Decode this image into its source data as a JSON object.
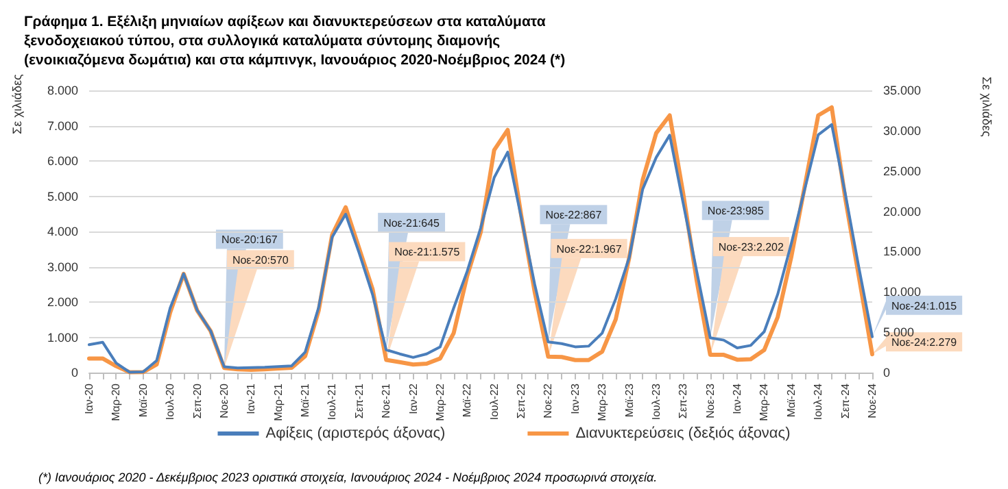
{
  "chart_data": {
    "type": "line",
    "title": "Γράφημα 1. Εξέλιξη μηνιαίων αφίξεων και διανυκτερεύσεων στα καταλύματα ξενοδοχειακού τύπου, στα συλλογικά καταλύματα σύντομης διαμονής (ενοικιαζόμενα δωμάτια) και στα κάμπινγκ, Ιανουάριος 2020-Νοέμβριος 2024 (*)",
    "ylabel": "Σε χιλιάδες",
    "y2label": "Σε χιλιάδες",
    "categories": [
      "Ιαν-20",
      null,
      "Μαρ-20",
      null,
      "Μαϊ-20",
      null,
      "Ιουλ-20",
      null,
      "Σεπ-20",
      null,
      "Νοε-20",
      null,
      "Ιαν-21",
      null,
      "Μαρ-21",
      null,
      "Μαϊ-21",
      null,
      "Ιουλ-21",
      null,
      "Σεπ-21",
      null,
      "Νοε-21",
      null,
      "Ιαν-22",
      null,
      "Μαρ-22",
      null,
      "Μαϊ-22",
      null,
      "Ιουλ-22",
      null,
      "Σεπ-22",
      null,
      "Νοε-22",
      null,
      "Ιαν-23",
      null,
      "Μαρ-23",
      null,
      "Μαϊ-23",
      null,
      "Ιουλ-23",
      null,
      "Σεπ-23",
      null,
      "Νοε-23",
      null,
      "Ιαν-24",
      null,
      "Μαρ-24",
      null,
      "Μαϊ-24",
      null,
      "Ιουλ-24",
      null,
      "Σεπ-24",
      null,
      "Νοε-24"
    ],
    "series": [
      {
        "name": "Αφίξεις (αριστερός άξονας)",
        "color": "#4a7ebb",
        "values": [
          790,
          860,
          270,
          10,
          20,
          340,
          1830,
          2800,
          1770,
          1180,
          167,
          130,
          140,
          150,
          170,
          190,
          580,
          1850,
          3840,
          4490,
          3390,
          2200,
          645,
          530,
          430,
          530,
          730,
          1830,
          2870,
          4100,
          5530,
          6250,
          4400,
          2500,
          867,
          820,
          730,
          750,
          1120,
          2090,
          3260,
          5200,
          6100,
          6730,
          4800,
          2870,
          985,
          920,
          700,
          770,
          1160,
          2220,
          3650,
          5200,
          6740,
          7030,
          5080,
          3000,
          1015
        ]
      },
      {
        "name": "Διανυκτερεύσεις (δεξιός άξονας)",
        "color": "#f79646",
        "axis": "y2",
        "values": [
          1750,
          1750,
          800,
          50,
          60,
          1000,
          7450,
          12250,
          7700,
          5150,
          570,
          400,
          350,
          400,
          500,
          600,
          2050,
          7700,
          17100,
          20500,
          15400,
          10300,
          1575,
          1300,
          1000,
          1100,
          1750,
          4900,
          12000,
          17400,
          27600,
          30100,
          19500,
          10000,
          1967,
          1930,
          1550,
          1550,
          2600,
          6600,
          14250,
          23900,
          29700,
          31900,
          22200,
          11400,
          2202,
          2200,
          1600,
          1650,
          2800,
          6900,
          14300,
          23100,
          31900,
          32900,
          21650,
          12000,
          2279
        ]
      }
    ],
    "ylim": [
      0,
      8000
    ],
    "yticks": [
      0,
      {
        "value": 1000,
        "label": "1.000"
      },
      {
        "value": 2000,
        "label": "2.000"
      },
      {
        "value": 3000,
        "label": "3.000"
      },
      {
        "value": 4000,
        "label": "4.000"
      },
      {
        "value": 5000,
        "label": "5.000"
      },
      {
        "value": 6000,
        "label": "6.000"
      },
      {
        "value": 7000,
        "label": "7.000"
      },
      {
        "value": 8000,
        "label": "8.000"
      }
    ],
    "y2lim": [
      0,
      35000
    ],
    "y2ticks": [
      0,
      {
        "value": 5000,
        "label": "5.000"
      },
      {
        "value": 10000,
        "label": "10.000"
      },
      {
        "value": 15000,
        "label": "15.000"
      },
      {
        "value": 20000,
        "label": "20.000"
      },
      {
        "value": 25000,
        "label": "25.000"
      },
      {
        "value": 30000,
        "label": "30.000"
      },
      {
        "value": 35000,
        "label": "35.000"
      }
    ],
    "annotations": [
      {
        "text": "Νοε-20:167",
        "x": "Νοε-20",
        "y": 167
      },
      "Νοε-20:570",
      {
        "text": "Νοε-21:645",
        "x": "Νοε-21",
        "y": 645
      },
      "Νοε-21:1.575",
      {
        "text": "Νοε-22:867",
        "x": "Νοε-22",
        "y": 867
      },
      "Νοε-22:1.967",
      {
        "text": "Νοε-23:985",
        "x": "Νοε-23",
        "y": 985
      },
      "Νοε-23:2.202",
      {
        "text": "Νοε-24:1.015",
        "x": "Νοε-24",
        "y": 1015
      },
      "Νοε-24:2.279",
      "(*) Ιανουάριος 2020 - Δεκέμβριος 2023 οριστικά στοιχεία, Ιανουάριος 2024 - Νοέμβριος 2024 προσωρινά στοιχεία."
    ],
    "grid": "y",
    "legend": "bottom",
    "marker": "none",
    "line_style": "solid"
  }
}
